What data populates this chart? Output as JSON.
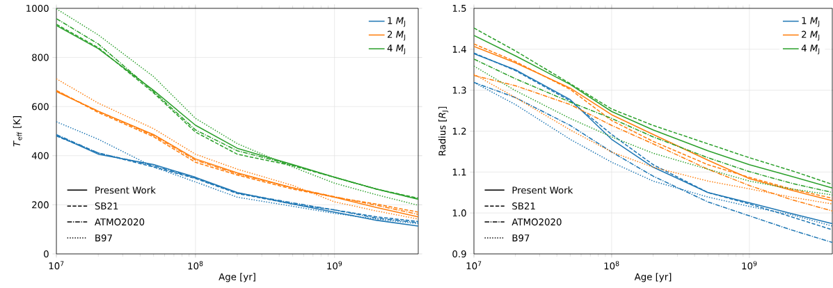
{
  "chart_data": [
    {
      "type": "line",
      "xlabel": "Age [yr]",
      "ylabel": "*T*$_{eff}$ [K]",
      "log": "x",
      "grid": true,
      "legend": "top right",
      "xlim": [
        10000000,
        4000000000
      ],
      "ylim": [
        0,
        1000
      ],
      "xticks": [
        {
          "value": 10000000,
          "label": "10$^{7}$"
        },
        {
          "value": 100000000,
          "label": "10$^{8}$"
        },
        {
          "value": 1000000000,
          "label": "10$^{9}$"
        }
      ],
      "yticks": [
        0,
        200,
        400,
        600,
        800,
        1000
      ],
      "x": [
        10000000,
        20000000,
        50000000,
        100000000,
        200000000,
        500000000,
        1000000000,
        2000000000,
        4000000000
      ],
      "annotations": [
        "Present Work",
        "SB21",
        "ATMO2020",
        "B97"
      ],
      "series": [
        {
          "name": "1 *M*$_{J}$",
          "color": "#1f77b4",
          "line_style": "solid",
          "values": [
            483,
            406,
            364,
            312,
            250,
            203,
            170,
            137,
            113
          ]
        },
        {
          "color": "#1f77b4",
          "line_style": "dashed",
          "values": [
            480,
            411,
            354,
            307,
            246,
            203,
            179,
            151,
            132
          ]
        },
        {
          "color": "#1f77b4",
          "line_style": "dashdot",
          "values": [
            486,
            411,
            359,
            309,
            248,
            208,
            179,
            146,
            127
          ]
        },
        {
          "color": "#1f77b4",
          "line_style": "dotted",
          "values": [
            538,
            467,
            354,
            293,
            231,
            194,
            165,
            142,
            123
          ]
        },
        {
          "name": "2 *M*$_{J}$",
          "color": "#ff7f0e",
          "line_style": "solid",
          "values": [
            661,
            581,
            486,
            387,
            330,
            269,
            231,
            189,
            151
          ]
        },
        {
          "color": "#ff7f0e",
          "line_style": "dashed",
          "values": [
            666,
            576,
            477,
            373,
            321,
            264,
            231,
            203,
            170
          ]
        },
        {
          "color": "#ff7f0e",
          "line_style": "dashdot",
          "values": [
            664,
            581,
            482,
            382,
            326,
            269,
            233,
            198,
            161
          ]
        },
        {
          "color": "#ff7f0e",
          "line_style": "dotted",
          "values": [
            713,
            614,
            510,
            406,
            345,
            279,
            212,
            175,
            142
          ]
        },
        {
          "name": "4 *M*$_{J}$",
          "color": "#2ca02c",
          "line_style": "solid",
          "values": [
            930,
            836,
            666,
            524,
            430,
            364,
            312,
            264,
            222
          ]
        },
        {
          "color": "#2ca02c",
          "line_style": "dashed",
          "values": [
            935,
            840,
            656,
            496,
            406,
            359,
            312,
            264,
            227
          ]
        },
        {
          "color": "#2ca02c",
          "line_style": "dashdot",
          "values": [
            958,
            855,
            661,
            505,
            420,
            362,
            312,
            264,
            224
          ]
        },
        {
          "color": "#2ca02c",
          "line_style": "dotted",
          "values": [
            998,
            892,
            722,
            552,
            449,
            354,
            288,
            241,
            198
          ]
        }
      ]
    },
    {
      "type": "line",
      "xlabel": "Age [yr]",
      "ylabel": "Radius [*R*$_{J}$]",
      "log": "x",
      "grid": true,
      "legend": "top right",
      "xlim": [
        10000000,
        4000000000
      ],
      "ylim": [
        0.9,
        1.5
      ],
      "xticks": [
        {
          "value": 10000000,
          "label": "10$^{7}$"
        },
        {
          "value": 100000000,
          "label": "10$^{8}$"
        },
        {
          "value": 1000000000,
          "label": "10$^{9}$"
        }
      ],
      "yticks": [
        0.9,
        {
          "value": 1.0,
          "label": "1.0"
        },
        1.1,
        1.2,
        1.3,
        1.4,
        1.5
      ],
      "x": [
        10000000,
        20000000,
        50000000,
        100000000,
        200000000,
        500000000,
        1000000000,
        2000000000,
        4000000000
      ],
      "annotations": [
        "Present Work",
        "SB21",
        "ATMO2020",
        "B97"
      ],
      "series": [
        {
          "name": "1 *M*$_{J}$",
          "color": "#1f77b4",
          "line_style": "solid",
          "values": [
            1.389,
            1.35,
            1.277,
            1.18,
            1.112,
            1.05,
            1.025,
            0.999,
            0.974
          ]
        },
        {
          "color": "#1f77b4",
          "line_style": "dashed",
          "values": [
            1.391,
            1.348,
            1.274,
            1.192,
            1.118,
            1.05,
            1.022,
            0.991,
            0.959
          ]
        },
        {
          "color": "#1f77b4",
          "line_style": "dashdot",
          "values": [
            1.319,
            1.282,
            1.214,
            1.149,
            1.09,
            1.027,
            0.993,
            0.959,
            0.928
          ]
        },
        {
          "color": "#1f77b4",
          "line_style": "dotted",
          "values": [
            1.319,
            1.265,
            1.18,
            1.124,
            1.078,
            1.039,
            1.016,
            0.996,
            0.968
          ]
        },
        {
          "name": "2 *M*$_{J}$",
          "color": "#ff7f0e",
          "line_style": "solid",
          "values": [
            1.407,
            1.367,
            1.305,
            1.24,
            1.192,
            1.129,
            1.084,
            1.056,
            1.03
          ]
        },
        {
          "color": "#ff7f0e",
          "line_style": "dashed",
          "values": [
            1.413,
            1.37,
            1.302,
            1.226,
            1.175,
            1.118,
            1.087,
            1.059,
            1.036
          ]
        },
        {
          "color": "#ff7f0e",
          "line_style": "dashdot",
          "values": [
            1.336,
            1.311,
            1.265,
            1.214,
            1.169,
            1.107,
            1.067,
            1.033,
            1.005
          ]
        },
        {
          "color": "#ff7f0e",
          "line_style": "dotted",
          "values": [
            1.339,
            1.282,
            1.203,
            1.149,
            1.112,
            1.078,
            1.059,
            1.039,
            1.022
          ]
        },
        {
          "name": "4 *M*$_{J}$",
          "color": "#2ca02c",
          "line_style": "solid",
          "values": [
            1.434,
            1.384,
            1.314,
            1.248,
            1.203,
            1.152,
            1.118,
            1.09,
            1.061
          ]
        },
        {
          "color": "#2ca02c",
          "line_style": "dashed",
          "values": [
            1.452,
            1.396,
            1.316,
            1.254,
            1.214,
            1.169,
            1.135,
            1.104,
            1.07
          ]
        },
        {
          "color": "#2ca02c",
          "line_style": "dashdot",
          "values": [
            1.376,
            1.328,
            1.271,
            1.231,
            1.186,
            1.135,
            1.101,
            1.073,
            1.05
          ]
        },
        {
          "color": "#2ca02c",
          "line_style": "dotted",
          "values": [
            1.359,
            1.299,
            1.231,
            1.186,
            1.146,
            1.107,
            1.078,
            1.059,
            1.044
          ]
        }
      ]
    }
  ]
}
